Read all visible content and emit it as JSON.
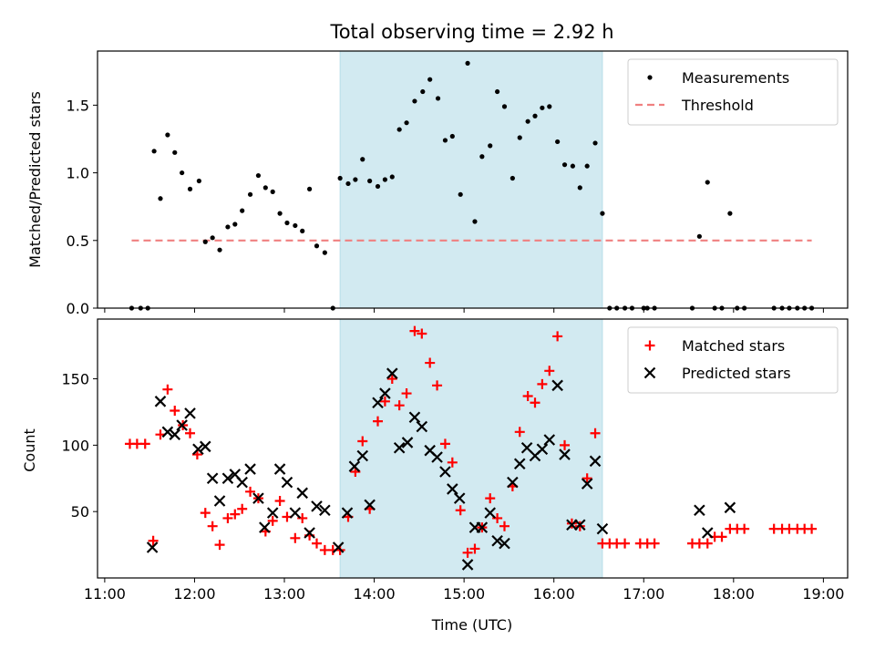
{
  "chart_data": [
    {
      "type": "scatter",
      "title": "Total observing time = 2.92 h",
      "xlabel": "",
      "ylabel": "Matched/Predicted stars",
      "xlim": [
        10.92,
        19.27
      ],
      "ylim": [
        0,
        1.9
      ],
      "yticks": [
        0.0,
        0.5,
        1.0,
        1.5
      ],
      "ytick_labels": [
        "0.0",
        "0.5",
        "1.0",
        "1.5"
      ],
      "grid": false,
      "legend": "top-right",
      "shaded_region": {
        "x_start": 13.62,
        "x_end": 16.54,
        "color": "#add8e6"
      },
      "threshold": {
        "name": "Threshold",
        "value": 0.5,
        "x_start": 11.3,
        "x_end": 18.87,
        "color": "#f08080",
        "style": "dashed"
      },
      "series": [
        {
          "name": "Measurements",
          "marker": "dot",
          "color": "#000000",
          "x": [
            11.3,
            11.4,
            11.48,
            11.55,
            11.62,
            11.7,
            11.78,
            11.86,
            11.95,
            12.05,
            12.12,
            12.2,
            12.28,
            12.37,
            12.45,
            12.53,
            12.62,
            12.71,
            12.79,
            12.87,
            12.95,
            13.03,
            13.12,
            13.2,
            13.28,
            13.36,
            13.45,
            13.54,
            13.62,
            13.71,
            13.79,
            13.87,
            13.95,
            14.04,
            14.12,
            14.2,
            14.28,
            14.36,
            14.45,
            14.54,
            14.62,
            14.71,
            14.79,
            14.87,
            14.96,
            15.04,
            15.12,
            15.2,
            15.29,
            15.37,
            15.45,
            15.54,
            15.62,
            15.71,
            15.79,
            15.87,
            15.95,
            16.04,
            16.12,
            16.21,
            16.29,
            16.37,
            16.46,
            16.54,
            16.62,
            16.7,
            16.79,
            16.87,
            17.0,
            17.04,
            17.12,
            17.54,
            17.62,
            17.71,
            17.79,
            17.87,
            17.96,
            18.04,
            18.12,
            18.45,
            18.54,
            18.62,
            18.71,
            18.79,
            18.87
          ],
          "y": [
            0.0,
            0.0,
            0.0,
            1.16,
            0.81,
            1.28,
            1.15,
            1.0,
            0.88,
            0.94,
            0.49,
            0.52,
            0.43,
            0.6,
            0.62,
            0.72,
            0.84,
            0.98,
            0.89,
            0.86,
            0.7,
            0.63,
            0.61,
            0.57,
            0.88,
            0.46,
            0.41,
            0.0,
            0.96,
            0.92,
            0.95,
            1.1,
            0.94,
            0.9,
            0.95,
            0.97,
            1.32,
            1.37,
            1.53,
            1.6,
            1.69,
            1.55,
            1.24,
            1.27,
            0.84,
            1.81,
            0.64,
            1.12,
            1.2,
            1.6,
            1.49,
            0.96,
            1.26,
            1.38,
            1.42,
            1.48,
            1.49,
            1.23,
            1.06,
            1.05,
            0.89,
            1.05,
            1.22,
            0.7,
            0.0,
            0.0,
            0.0,
            0.0,
            0.0,
            0.0,
            0.0,
            0.0,
            0.53,
            0.93,
            0.0,
            0.0,
            0.7,
            0.0,
            0.0,
            0.0,
            0.0,
            0.0,
            0.0,
            0.0,
            0.0
          ]
        }
      ]
    },
    {
      "type": "scatter",
      "title": "",
      "xlabel": "Time (UTC)",
      "ylabel": "Count",
      "xlim": [
        10.92,
        19.27
      ],
      "ylim": [
        0,
        195
      ],
      "xticks": [
        11,
        12,
        13,
        14,
        15,
        16,
        17,
        18,
        19
      ],
      "xtick_labels": [
        "11:00",
        "12:00",
        "13:00",
        "14:00",
        "15:00",
        "16:00",
        "17:00",
        "18:00",
        "19:00"
      ],
      "yticks": [
        50,
        100,
        150
      ],
      "ytick_labels": [
        "50",
        "100",
        "150"
      ],
      "grid": false,
      "legend": "top-right",
      "shaded_region": {
        "x_start": 13.62,
        "x_end": 16.54,
        "color": "#add8e6"
      },
      "series": [
        {
          "name": "Matched stars",
          "marker": "plus",
          "color": "#ff0000",
          "x": [
            11.28,
            11.36,
            11.45,
            11.54,
            11.62,
            11.7,
            11.78,
            11.87,
            11.95,
            12.03,
            12.12,
            12.2,
            12.28,
            12.37,
            12.45,
            12.53,
            12.62,
            12.71,
            12.79,
            12.87,
            12.95,
            13.03,
            13.12,
            13.2,
            13.28,
            13.36,
            13.45,
            13.54,
            13.62,
            13.71,
            13.79,
            13.87,
            13.95,
            14.04,
            14.12,
            14.2,
            14.28,
            14.36,
            14.45,
            14.53,
            14.62,
            14.7,
            14.79,
            14.87,
            14.96,
            15.04,
            15.12,
            15.2,
            15.29,
            15.37,
            15.45,
            15.54,
            15.62,
            15.71,
            15.79,
            15.87,
            15.95,
            16.04,
            16.12,
            16.2,
            16.29,
            16.37,
            16.46,
            16.54,
            16.62,
            16.7,
            16.79,
            16.96,
            17.04,
            17.12,
            17.54,
            17.62,
            17.71,
            17.79,
            17.87,
            17.96,
            18.04,
            18.12,
            18.45,
            18.54,
            18.62,
            18.71,
            18.79,
            18.87
          ],
          "y": [
            101,
            101,
            101,
            28,
            108,
            142,
            126,
            115,
            109,
            93,
            49,
            39,
            25,
            45,
            48,
            52,
            65,
            60,
            35,
            43,
            58,
            46,
            30,
            45,
            32,
            26,
            21,
            21,
            21,
            46,
            80,
            103,
            52,
            118,
            133,
            150,
            130,
            139,
            186,
            184,
            162,
            145,
            101,
            87,
            51,
            19,
            22,
            38,
            60,
            45,
            39,
            69,
            110,
            137,
            132,
            146,
            156,
            182,
            100,
            41,
            39,
            75,
            109,
            26,
            26,
            26,
            26,
            26,
            26,
            26,
            26,
            26,
            26,
            31,
            31,
            37,
            37,
            37,
            37,
            37,
            37,
            37,
            37,
            37
          ]
        },
        {
          "name": "Predicted stars",
          "marker": "x",
          "color": "#000000",
          "x": [
            11.53,
            11.62,
            11.7,
            11.78,
            11.86,
            11.95,
            12.04,
            12.12,
            12.2,
            12.28,
            12.37,
            12.45,
            12.53,
            12.62,
            12.71,
            12.78,
            12.87,
            12.95,
            13.03,
            13.12,
            13.2,
            13.28,
            13.36,
            13.45,
            13.6,
            13.7,
            13.78,
            13.87,
            13.95,
            14.04,
            14.12,
            14.2,
            14.28,
            14.37,
            14.45,
            14.53,
            14.62,
            14.7,
            14.79,
            14.87,
            14.95,
            15.04,
            15.12,
            15.2,
            15.29,
            15.37,
            15.45,
            15.54,
            15.62,
            15.7,
            15.79,
            15.87,
            15.95,
            16.04,
            16.12,
            16.2,
            16.29,
            16.37,
            16.46,
            16.54,
            17.62,
            17.71,
            17.96
          ],
          "y": [
            23,
            133,
            110,
            108,
            115,
            124,
            97,
            99,
            75,
            58,
            75,
            78,
            72,
            82,
            60,
            38,
            49,
            82,
            72,
            49,
            64,
            34,
            54,
            51,
            23,
            49,
            84,
            92,
            55,
            132,
            139,
            154,
            98,
            102,
            121,
            114,
            96,
            91,
            80,
            67,
            60,
            10,
            38,
            38,
            49,
            28,
            26,
            72,
            86,
            98,
            92,
            97,
            104,
            145,
            93,
            40,
            40,
            71,
            88,
            37,
            51,
            34,
            53
          ]
        }
      ]
    }
  ]
}
